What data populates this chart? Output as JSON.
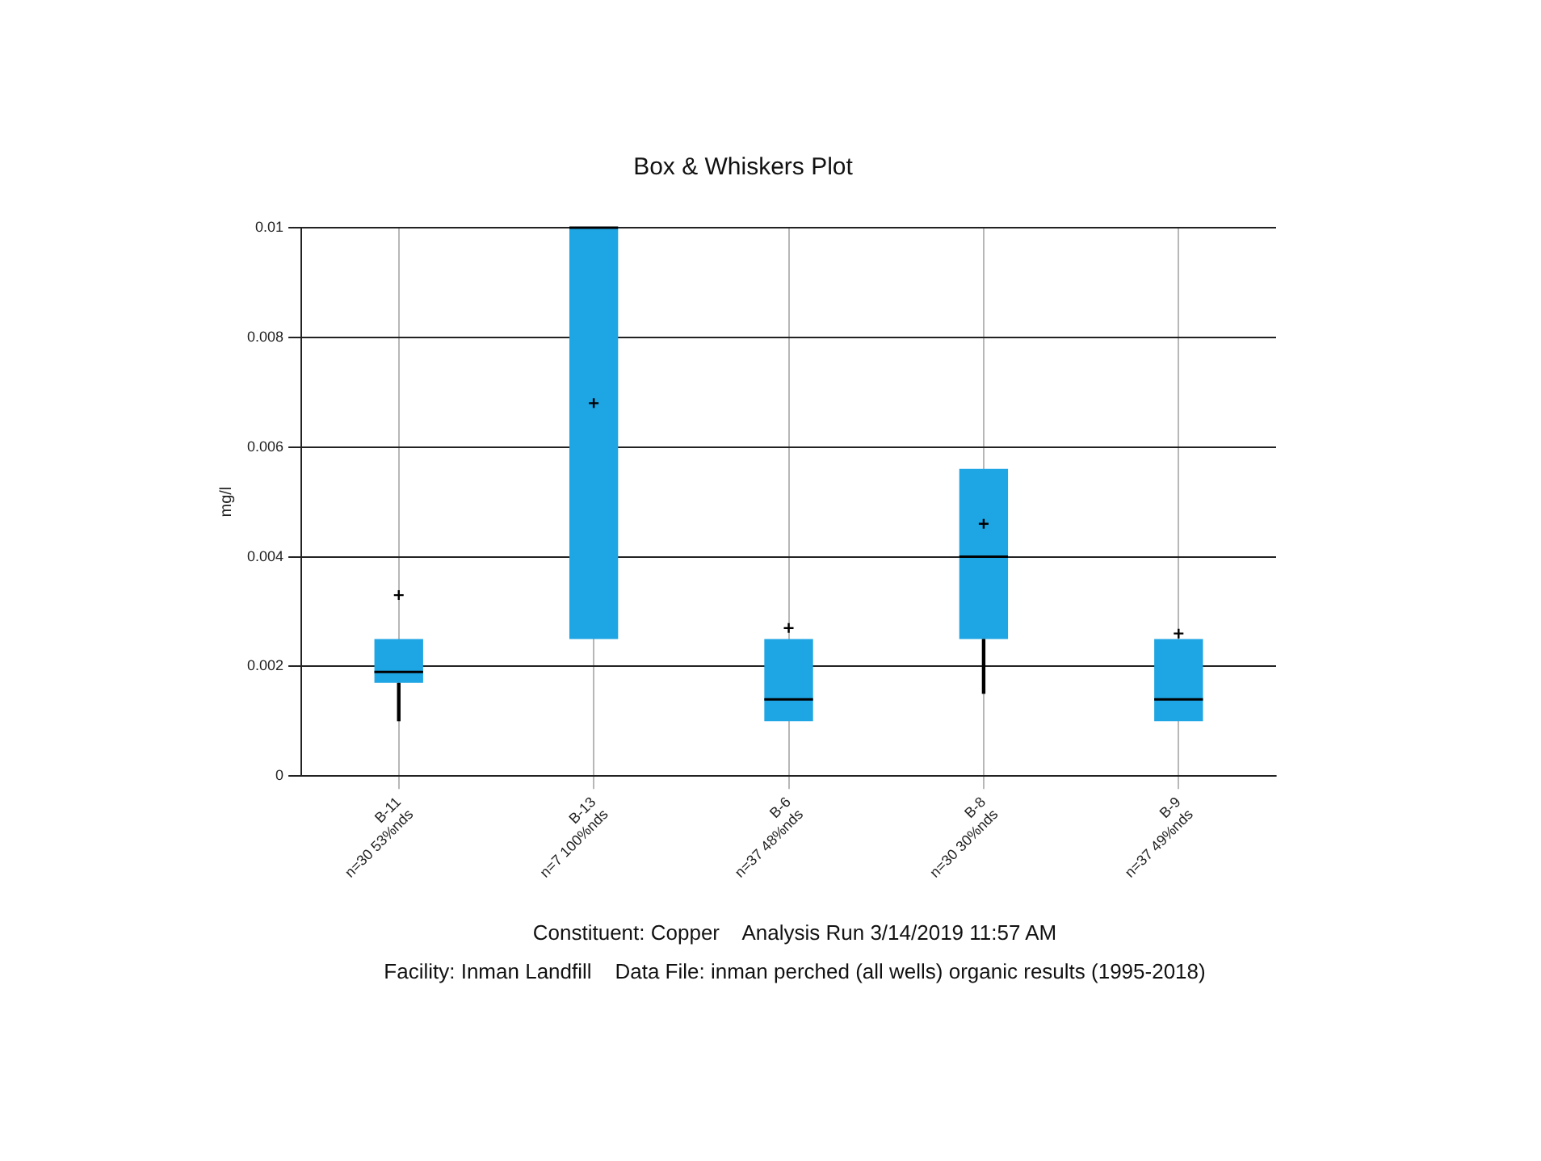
{
  "chart_data": {
    "type": "box",
    "title": "Box & Whiskers Plot",
    "ylabel": "mg/l",
    "categories": [
      "B-11\nn=30 53%nds",
      "B-13\nn=7 100%nds",
      "B-6\nn=37 48%nds",
      "B-8\nn=30 30%nds",
      "B-9\nn=37 49%nds"
    ],
    "color": "#1ea5e3",
    "boxes": [
      {
        "low": 0.001,
        "q1": 0.0017,
        "median": 0.0019,
        "q3": 0.0025,
        "high": 0.0025,
        "mean": 0.0033
      },
      {
        "low": 0.0025,
        "q1": 0.0025,
        "median": 0.01,
        "q3": 0.01,
        "high": 0.01,
        "mean": 0.0068
      },
      {
        "low": 0.001,
        "q1": 0.001,
        "median": 0.0014,
        "q3": 0.0025,
        "high": 0.0025,
        "mean": 0.0027
      },
      {
        "low": 0.0015,
        "q1": 0.0025,
        "median": 0.004,
        "q3": 0.0056,
        "high": 0.0056,
        "mean": 0.0046
      },
      {
        "low": 0.001,
        "q1": 0.001,
        "median": 0.0014,
        "q3": 0.0025,
        "high": 0.0025,
        "mean": 0.0026
      }
    ],
    "ylim": [
      0,
      0.01
    ],
    "yticks": [
      0,
      {
        "value": 0.002,
        "label": "0.002"
      },
      {
        "value": 0.004,
        "label": "0.004"
      },
      {
        "value": 0.006,
        "label": "0.006"
      },
      {
        "value": 0.008,
        "label": "0.008"
      },
      0.01
    ],
    "grid": true,
    "legend": false,
    "annotations": [
      "Constituent: Copper    Analysis Run 3/14/2019 11:57 AM",
      "Facility: Inman Landfill    Data File: inman perched (all wells) organic results (1995-2018)"
    ]
  }
}
